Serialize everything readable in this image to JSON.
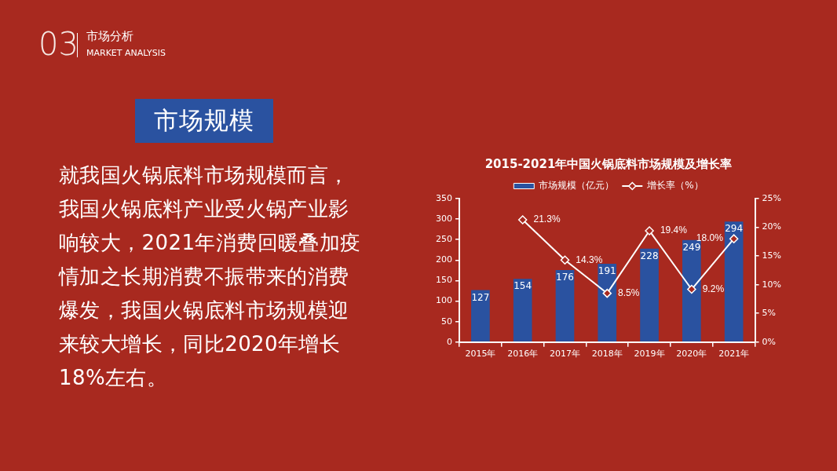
{
  "chart_data": {
    "type": "bar",
    "title": "2015-2021年中国火锅底料市场规模及增长率",
    "categories": [
      "2015年",
      "2016年",
      "2017年",
      "2018年",
      "2019年",
      "2020年",
      "2021年"
    ],
    "series": [
      {
        "name": "市场规模（亿元）",
        "color": "#2a52a0",
        "values": [
          127,
          154,
          176,
          191,
          228,
          249,
          294
        ],
        "value_labels": [
          "127",
          "154",
          "176",
          "191",
          "228",
          "249",
          "294"
        ]
      },
      {
        "name": "增长率（%）",
        "type": "line",
        "axis": "y2",
        "color": "#ffffff",
        "values": [
          null,
          21.3,
          14.3,
          8.5,
          19.4,
          9.2,
          18.0
        ],
        "value_labels": [
          null,
          "21.3%",
          "14.3%",
          "8.5%",
          "19.4%",
          "9.2%",
          "18.0%"
        ]
      }
    ],
    "ylim": [
      0,
      350
    ],
    "yticks": [
      0,
      50,
      100,
      150,
      200,
      250,
      300,
      350
    ],
    "y2lim": [
      0,
      25
    ],
    "y2ticks": [
      {
        "value": 0,
        "label": "0%"
      },
      {
        "value": 5,
        "label": "5%"
      },
      {
        "value": 10,
        "label": "10%"
      },
      {
        "value": 15,
        "label": "15%"
      },
      {
        "value": 20,
        "label": "20%"
      },
      {
        "value": 25,
        "label": "25%"
      }
    ],
    "legend": "top",
    "marker": "diamond",
    "annotations": [
      "03",
      "市场分析",
      "MARKET ANALYSIS",
      "市场规模",
      "就我国火锅底料市场规模而言，我国火锅底料产业受火锅产业影响较大，2021年消费回暖叠加疫情加之长期消费不振带来的消费爆发，我国火锅底料市场规模迎来较大增长，同比2020年增长18%左右。"
    ]
  }
}
